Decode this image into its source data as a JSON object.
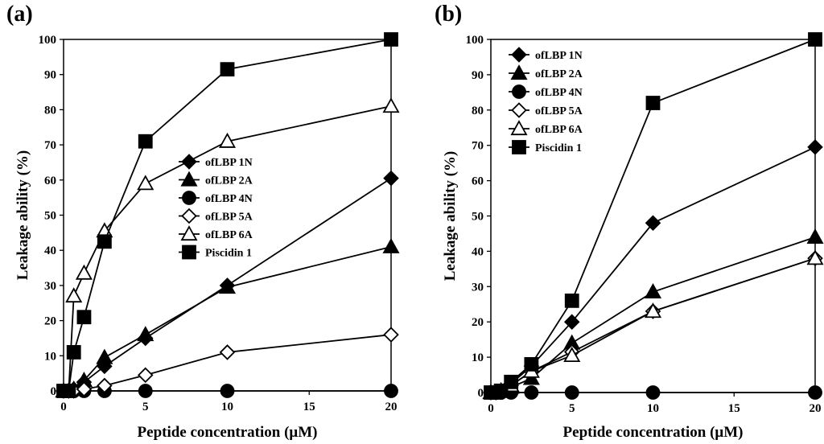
{
  "chart_data": [
    {
      "type": "line",
      "panel_label": "(a)",
      "xlabel": "Peptide concentration (μM)",
      "ylabel": "Leakage ability (%)",
      "xlim": [
        0,
        20
      ],
      "ylim": [
        0,
        100
      ],
      "xticks": [
        0,
        5,
        10,
        15,
        20
      ],
      "yticks": [
        0,
        10,
        20,
        30,
        40,
        50,
        60,
        70,
        80,
        90,
        100
      ],
      "grid": false,
      "legend_position": "center-right",
      "x": [
        0,
        0.3125,
        0.625,
        1.25,
        2.5,
        5,
        10,
        20
      ],
      "series": [
        {
          "name": "ofLBP 1N",
          "marker": "diamond-filled",
          "values": [
            0,
            0,
            0.5,
            2.5,
            7,
            15,
            30,
            60.5
          ]
        },
        {
          "name": "ofLBP 2A",
          "marker": "triangle-filled",
          "values": [
            0,
            0,
            0.5,
            3,
            9.5,
            16,
            29.5,
            41
          ]
        },
        {
          "name": "ofLBP 4N",
          "marker": "circle-filled",
          "values": [
            0,
            0,
            0,
            0,
            0,
            0,
            0,
            0
          ]
        },
        {
          "name": "ofLBP 5A",
          "marker": "diamond-open",
          "values": [
            0,
            0,
            0,
            0.5,
            1.5,
            4.5,
            11,
            16
          ]
        },
        {
          "name": "ofLBP 6A",
          "marker": "triangle-open",
          "values": [
            0,
            0,
            27,
            33.5,
            45.5,
            59,
            71,
            81
          ]
        },
        {
          "name": "Piscidin 1",
          "marker": "square-filled",
          "values": [
            0,
            0,
            11,
            21,
            42.5,
            71,
            91.5,
            100
          ]
        }
      ]
    },
    {
      "type": "line",
      "panel_label": "(b)",
      "xlabel": "Peptide concentration (μM)",
      "ylabel": "Leakage ability (%)",
      "xlim": [
        0,
        20
      ],
      "ylim": [
        0,
        100
      ],
      "xticks": [
        0,
        5,
        10,
        15,
        20
      ],
      "yticks": [
        0,
        10,
        20,
        30,
        40,
        50,
        60,
        70,
        80,
        90,
        100
      ],
      "grid": false,
      "legend_position": "top-left",
      "x": [
        0,
        0.3125,
        0.625,
        1.25,
        2.5,
        5,
        10,
        20
      ],
      "series": [
        {
          "name": "ofLBP 1N",
          "marker": "diamond-filled",
          "values": [
            0,
            0,
            0.5,
            2.5,
            7.5,
            20,
            48,
            69.5
          ]
        },
        {
          "name": "ofLBP 2A",
          "marker": "triangle-filled",
          "values": [
            0,
            0,
            0.5,
            1.5,
            4,
            14,
            28.5,
            44
          ]
        },
        {
          "name": "ofLBP 4N",
          "marker": "circle-filled",
          "values": [
            0,
            0,
            0,
            0,
            0,
            0,
            0,
            0
          ]
        },
        {
          "name": "ofLBP 5A",
          "marker": "diamond-open",
          "values": [
            0,
            0,
            0.5,
            2,
            6,
            11.5,
            23,
            38
          ]
        },
        {
          "name": "ofLBP 6A",
          "marker": "triangle-open",
          "values": [
            0,
            0,
            0.5,
            2,
            6,
            10.5,
            23,
            38
          ]
        },
        {
          "name": "Piscidin 1",
          "marker": "square-filled",
          "values": [
            0,
            0,
            0.5,
            3,
            8,
            26,
            82,
            100
          ]
        }
      ]
    }
  ]
}
